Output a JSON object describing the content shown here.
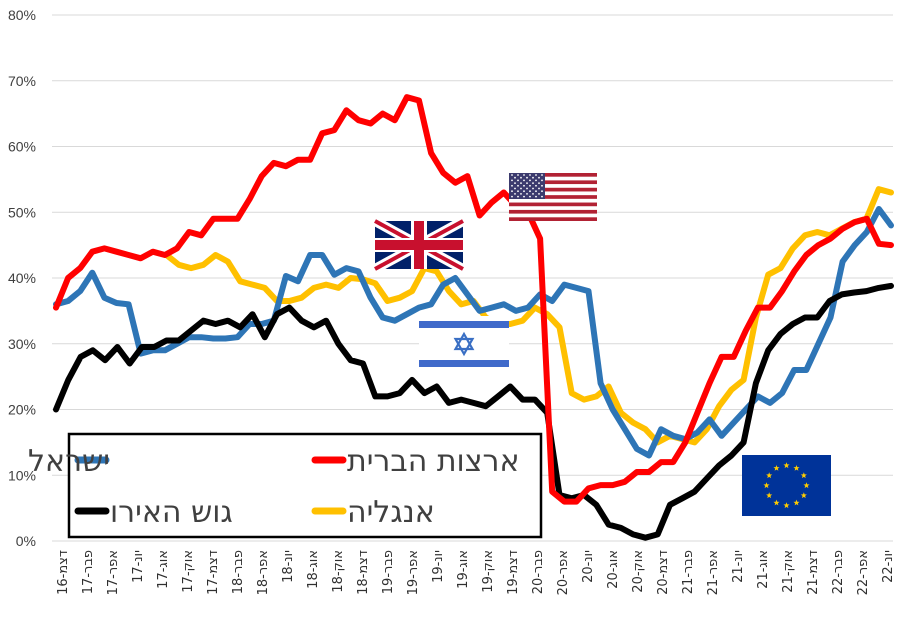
{
  "chart_data": {
    "type": "line",
    "title": "",
    "xlabel": "",
    "ylabel": "",
    "ylim": [
      0,
      80
    ],
    "yticks": [
      "0%",
      "10%",
      "20%",
      "30%",
      "40%",
      "50%",
      "60%",
      "70%",
      "80%"
    ],
    "grid": "horizontal",
    "legend_placement": "bottom-left",
    "x_labels": [
      "דצמ-16",
      "פבר-17",
      "אפר-17",
      "יונ-17",
      "אוג-17",
      "אוק-17",
      "דצמ-17",
      "פבר-18",
      "אפר-18",
      "יונ-18",
      "אוג-18",
      "אוק-18",
      "דצמ-18",
      "פבר-19",
      "אפר-19",
      "יונ-19",
      "אוג-19",
      "אוק-19",
      "דצמ-19",
      "פבר-20",
      "אפר-20",
      "יונ-20",
      "אוג-20",
      "אוק-20",
      "דצמ-20",
      "פבר-21",
      "אפר-21",
      "יונ-21",
      "אוג-21",
      "אוק-21",
      "דצמ-21",
      "פבר-22",
      "אפר-22",
      "יונ-22"
    ],
    "series": [
      {
        "name": "ישראל",
        "color": "#2E75B6",
        "values": [
          36,
          36.5,
          38,
          40.8,
          37,
          36.2,
          36,
          28.5,
          29,
          29,
          30,
          31,
          31,
          30.8,
          30.8,
          31,
          33,
          33,
          33.5,
          40.3,
          39.5,
          43.5,
          43.5,
          40.5,
          41.5,
          41,
          37,
          34,
          33.5,
          34.5,
          35.5,
          36,
          39,
          40,
          37.5,
          35,
          35.5,
          36,
          35,
          35.5,
          37.5,
          36.5,
          39,
          38.5,
          38,
          24,
          20,
          17,
          14,
          13,
          17,
          16,
          15.5,
          16.5,
          18.5,
          16,
          18,
          20,
          22,
          21,
          22.5,
          26,
          26,
          30,
          34,
          42.5,
          45,
          47,
          50.5,
          48
        ]
      },
      {
        "name": "ארצות הברית",
        "color": "#FF0000",
        "values": [
          35.5,
          40,
          41.5,
          44,
          44.5,
          44,
          43.5,
          43,
          44,
          43.5,
          44.5,
          47,
          46.5,
          49,
          49,
          49,
          52,
          55.5,
          57.5,
          57,
          58,
          58,
          62,
          62.5,
          65.5,
          64,
          63.5,
          65,
          64,
          67.5,
          67,
          59,
          56,
          54.5,
          55.5,
          49.5,
          51.5,
          53,
          51,
          50,
          46,
          7.5,
          6,
          6,
          8,
          8.5,
          8.5,
          9,
          10.5,
          10.5,
          12,
          12,
          15,
          19.5,
          24,
          28,
          28,
          32,
          35.5,
          35.5,
          38,
          41,
          43.5,
          45,
          46,
          47.5,
          48.5,
          49,
          45.2,
          45
        ]
      },
      {
        "name": "גוש האירו",
        "color": "#000000",
        "values": [
          20,
          24.5,
          28,
          29,
          27.5,
          29.5,
          27,
          29.5,
          29.5,
          30.5,
          30.5,
          32,
          33.5,
          33,
          33.5,
          32.5,
          34.5,
          31,
          34.5,
          35.5,
          33.5,
          32.5,
          33.5,
          30,
          27.5,
          27,
          22,
          22,
          22.5,
          24.5,
          22.5,
          23.5,
          21,
          21.5,
          21,
          20.5,
          22,
          23.5,
          21.5,
          21.5,
          19.5,
          7,
          6.5,
          7,
          5.5,
          2.5,
          2,
          1,
          0.5,
          1,
          5.5,
          6.5,
          7.5,
          9.5,
          11.5,
          13,
          15,
          24,
          29,
          31.5,
          33,
          34,
          34,
          36.5,
          37.5,
          37.8,
          38,
          38.5,
          38.8
        ]
      },
      {
        "name": "אנגליה",
        "color": "#FFC000",
        "values": [
          null,
          null,
          null,
          null,
          null,
          null,
          null,
          null,
          null,
          43.5,
          42,
          41.5,
          42,
          43.5,
          42.5,
          39.5,
          39,
          38.5,
          36.5,
          36.5,
          37,
          38.5,
          39,
          38.5,
          40,
          39.8,
          39.2,
          36.5,
          37,
          38,
          41.5,
          41,
          38,
          36,
          36.5,
          34,
          33,
          33,
          33.5,
          35.5,
          34.5,
          32.5,
          22.5,
          21.5,
          22,
          23.5,
          19.5,
          18,
          17,
          15,
          16,
          15.5,
          15,
          17,
          20.5,
          23,
          24.5,
          34,
          40.5,
          41.5,
          44.5,
          46.5,
          47,
          46.5,
          47.5,
          48.5,
          49,
          53.5,
          53
        ]
      }
    ],
    "legend": {
      "entries_row1": [
        "ישראל",
        "ארצות הברית"
      ],
      "entries_row2": [
        "גוש האירו",
        "אנגליה"
      ]
    },
    "flags": [
      {
        "name": "uk-flag-icon",
        "anchor_series": "אנגליה"
      },
      {
        "name": "usa-flag-icon",
        "anchor_series": "ארצות הברית"
      },
      {
        "name": "israel-flag-icon",
        "anchor_series": "ישראל"
      },
      {
        "name": "eu-flag-icon",
        "anchor_series": "גוש האירו"
      }
    ]
  }
}
